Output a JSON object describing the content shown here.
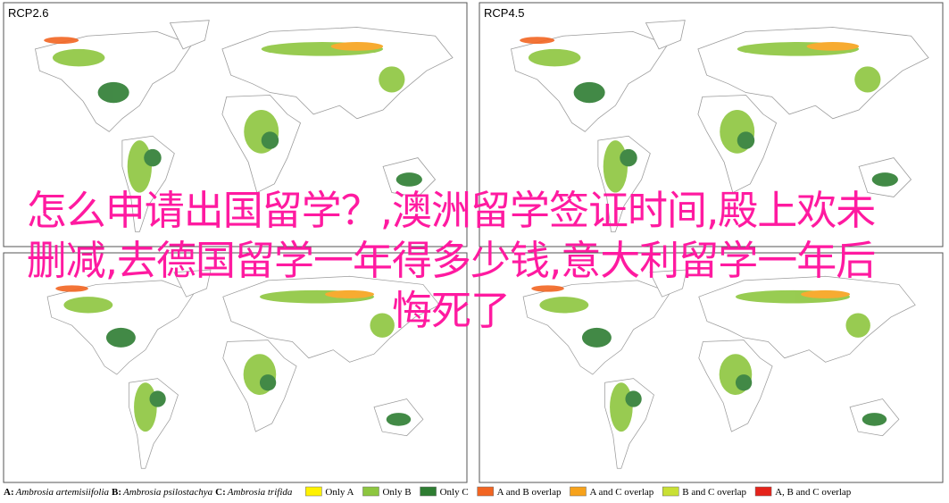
{
  "panels": [
    {
      "label": "RCP2.6"
    },
    {
      "label": "RCP4.5"
    },
    {},
    {}
  ],
  "legend": {
    "species": [
      {
        "key": "A:",
        "name": "Ambrosia artemisiifolia"
      },
      {
        "key": "B:",
        "name": "Ambrosia psilostachya"
      },
      {
        "key": "C:",
        "name": "Ambrosia trifida"
      }
    ],
    "items": [
      {
        "label": "Only A",
        "color": "#fff200"
      },
      {
        "label": "Only B",
        "color": "#8dc63f"
      },
      {
        "label": "Only C",
        "color": "#2e7d32"
      },
      {
        "label": "A and B overlap",
        "color": "#f26522"
      },
      {
        "label": "A and C overlap",
        "color": "#f7a21b"
      },
      {
        "label": "B and C overlap",
        "color": "#c9e034"
      },
      {
        "label": "A, B and C overlap",
        "color": "#e5231b"
      }
    ]
  },
  "overlay_title": "怎么申请出国留学？,澳洲留学签证时间,殿上欢未删减,去德国留学一年得多少钱,意大利留学一年后悔死了"
}
